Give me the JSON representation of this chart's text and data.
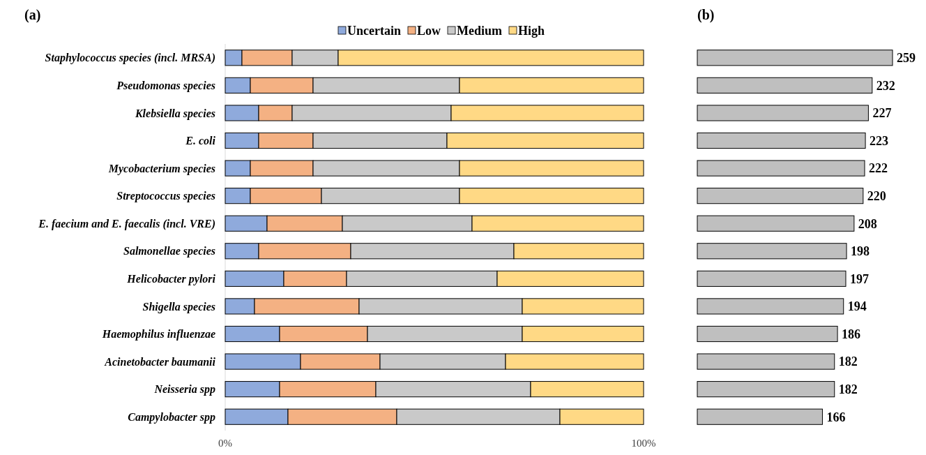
{
  "chart_data": [
    {
      "type": "bar",
      "title": "(a)",
      "orientation": "horizontal",
      "stacked": true,
      "legend": "top",
      "categories": [
        "Staphylococcus species (incl. MRSA)",
        "Pseudomonas species",
        "Klebsiella species",
        "E. coli",
        "Mycobacterium species",
        "Streptococcus species",
        "E. faecium and E. faecalis (incl. VRE)",
        "Salmonellae species",
        "Helicobacter pylori",
        "Shigella species",
        "Haemophilus influenzae",
        "Acinetobacter baumanii",
        "Neisseria spp",
        "Campylobacter spp"
      ],
      "series": [
        {
          "name": "Uncertain",
          "color": "#8faadc",
          "values": [
            4,
            6,
            8,
            8,
            6,
            6,
            10,
            8,
            14,
            7,
            13,
            18,
            13,
            15
          ]
        },
        {
          "name": "Low",
          "color": "#f4b183",
          "values": [
            12,
            15,
            8,
            13,
            15,
            17,
            18,
            22,
            15,
            25,
            21,
            19,
            23,
            26
          ]
        },
        {
          "name": "Medium",
          "color": "#c9c9c9",
          "values": [
            11,
            35,
            38,
            32,
            35,
            33,
            31,
            39,
            36,
            39,
            37,
            30,
            37,
            39
          ]
        },
        {
          "name": "High",
          "color": "#ffd985",
          "values": [
            73,
            44,
            46,
            47,
            44,
            44,
            41,
            31,
            35,
            29,
            29,
            33,
            27,
            20
          ]
        }
      ],
      "xlim": [
        0,
        100
      ],
      "xticks": [
        {
          "value": 0,
          "label": "0%"
        },
        {
          "value": 100,
          "label": "100%"
        }
      ]
    },
    {
      "type": "bar",
      "title": "(b)",
      "orientation": "horizontal",
      "data_labels": true,
      "categories": [
        null,
        null,
        null,
        null,
        null,
        null,
        null,
        null,
        null,
        null,
        null,
        null,
        null,
        null
      ],
      "series": [
        {
          "color": "#bfbfbf",
          "values": [
            259,
            232,
            227,
            223,
            222,
            220,
            208,
            198,
            197,
            194,
            186,
            182,
            182,
            166
          ]
        }
      ]
    }
  ]
}
